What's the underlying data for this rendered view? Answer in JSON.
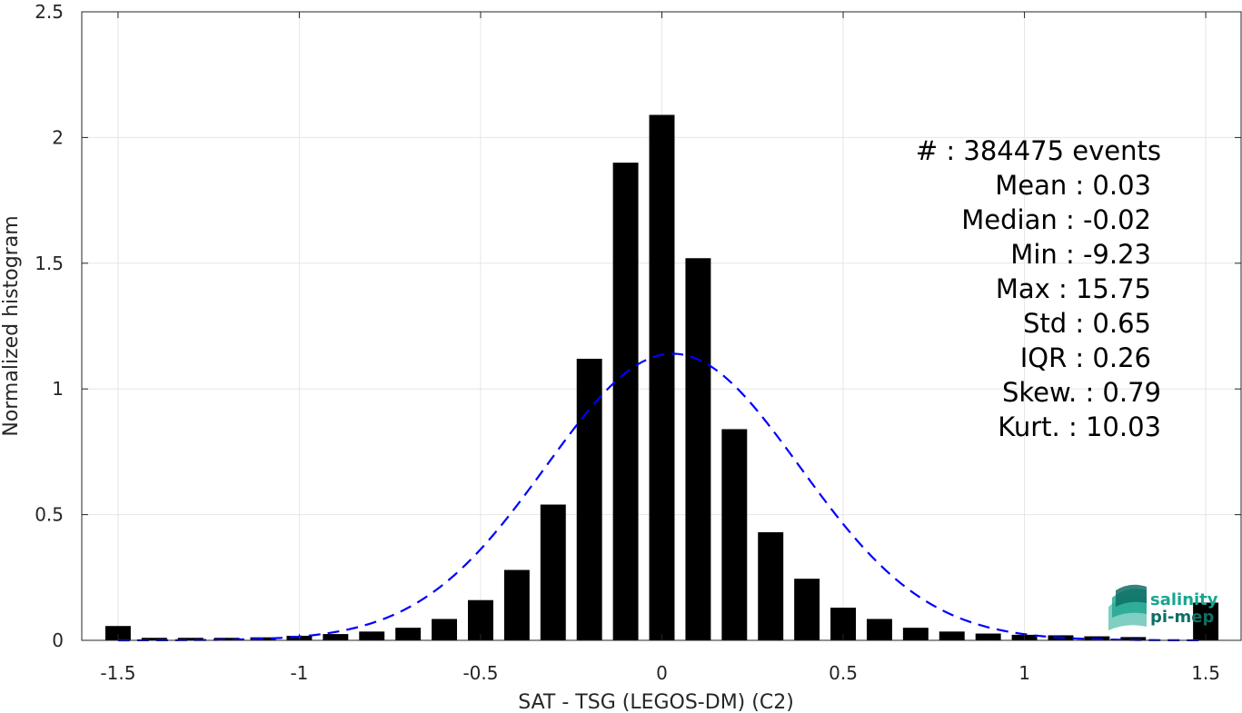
{
  "chart_data": {
    "type": "bar",
    "xlabel": "SAT - TSG (LEGOS-DM) (C2)",
    "ylabel": "Normalized histogram",
    "xlim": [
      -1.6,
      1.6
    ],
    "ylim": [
      0,
      2.5
    ],
    "grid": true,
    "bar_color": "#000000",
    "x_ticks": [
      -1.5,
      -1,
      -0.5,
      0,
      0.5,
      1,
      1.5
    ],
    "x_tick_labels": [
      "-1.5",
      "-1",
      "-0.5",
      "0",
      "0.5",
      "1",
      "1.5"
    ],
    "y_ticks": [
      0,
      0.5,
      1,
      1.5,
      2,
      2.5
    ],
    "y_tick_labels": [
      "0",
      "0.5",
      "1",
      "1.5",
      "2",
      "2.5"
    ],
    "bar_width": 0.07,
    "x": [
      -1.5,
      -1.4,
      -1.3,
      -1.2,
      -1.1,
      -1.0,
      -0.9,
      -0.8,
      -0.7,
      -0.6,
      -0.5,
      -0.4,
      -0.3,
      -0.2,
      -0.1,
      0.0,
      0.1,
      0.2,
      0.3,
      0.4,
      0.5,
      0.6,
      0.7,
      0.8,
      0.9,
      1.0,
      1.1,
      1.2,
      1.3,
      1.5
    ],
    "values": [
      0.057,
      0.01,
      0.01,
      0.01,
      0.012,
      0.018,
      0.025,
      0.035,
      0.05,
      0.085,
      0.16,
      0.28,
      0.54,
      1.12,
      1.9,
      2.09,
      1.52,
      0.84,
      0.43,
      0.245,
      0.13,
      0.085,
      0.05,
      0.035,
      0.027,
      0.022,
      0.02,
      0.016,
      0.013,
      0.15
    ],
    "fit_curve": {
      "type": "normal",
      "mean": 0.03,
      "std": 0.35,
      "peak": 1.14,
      "color": "#0000ff",
      "style": "dashed",
      "x_range": [
        -1.5,
        1.5
      ]
    },
    "annotations": [
      "#  : 384475 events",
      "Mean : 0.03",
      "Median : -0.02",
      "Min : -9.23",
      "Max : 15.75",
      "Std : 0.65",
      "IQR : 0.26",
      "Skew. : 0.79",
      "Kurt. : 10.03"
    ]
  },
  "logo": {
    "line1": "salinity",
    "line2": "pi-mep",
    "color_primary": "#1aa58f",
    "color_dark": "#0e6f66"
  }
}
